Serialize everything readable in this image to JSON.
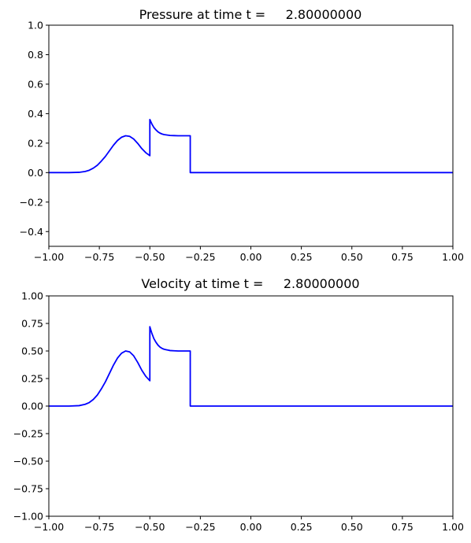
{
  "chart_data": [
    {
      "type": "line",
      "title": "Pressure at time t =     2.80000000",
      "xlabel": "",
      "ylabel": "",
      "xlim": [
        -1.0,
        1.0
      ],
      "ylim": [
        -0.5,
        1.0
      ],
      "xticks": [
        -1.0,
        -0.75,
        -0.5,
        -0.25,
        0.0,
        0.25,
        0.5,
        0.75,
        1.0
      ],
      "xtick_labels": [
        "−1.00",
        "−0.75",
        "−0.50",
        "−0.25",
        "0.00",
        "0.25",
        "0.50",
        "0.75",
        "1.00"
      ],
      "yticks": [
        -0.4,
        -0.2,
        0.0,
        0.2,
        0.4,
        0.6,
        0.8,
        1.0
      ],
      "ytick_labels": [
        "−0.4",
        "−0.2",
        "0.0",
        "0.2",
        "0.4",
        "0.6",
        "0.8",
        "1.0"
      ],
      "grid": false,
      "series": [
        {
          "color": "#0000ff",
          "x": [
            -1.0,
            -0.9,
            -0.85,
            -0.82,
            -0.8,
            -0.78,
            -0.76,
            -0.74,
            -0.72,
            -0.7,
            -0.68,
            -0.66,
            -0.64,
            -0.62,
            -0.6,
            -0.58,
            -0.56,
            -0.54,
            -0.52,
            -0.5,
            -0.5,
            -0.49,
            -0.48,
            -0.47,
            -0.46,
            -0.45,
            -0.44,
            -0.43,
            -0.42,
            -0.41,
            -0.4,
            -0.38,
            -0.36,
            -0.34,
            -0.32,
            -0.3,
            -0.3,
            -0.28,
            0.0,
            0.5,
            1.0
          ],
          "y": [
            0.0,
            0.0,
            0.002,
            0.008,
            0.016,
            0.03,
            0.05,
            0.078,
            0.11,
            0.148,
            0.186,
            0.218,
            0.24,
            0.25,
            0.246,
            0.228,
            0.198,
            0.163,
            0.135,
            0.115,
            0.36,
            0.33,
            0.306,
            0.29,
            0.277,
            0.268,
            0.262,
            0.258,
            0.256,
            0.254,
            0.252,
            0.251,
            0.25,
            0.25,
            0.25,
            0.25,
            0.0,
            0.0,
            0.0,
            0.0,
            0.0
          ]
        }
      ]
    },
    {
      "type": "line",
      "title": "Velocity at time t =     2.80000000",
      "xlabel": "",
      "ylabel": "",
      "xlim": [
        -1.0,
        1.0
      ],
      "ylim": [
        -1.0,
        1.0
      ],
      "xticks": [
        -1.0,
        -0.75,
        -0.5,
        -0.25,
        0.0,
        0.25,
        0.5,
        0.75,
        1.0
      ],
      "xtick_labels": [
        "−1.00",
        "−0.75",
        "−0.50",
        "−0.25",
        "0.00",
        "0.25",
        "0.50",
        "0.75",
        "1.00"
      ],
      "yticks": [
        -1.0,
        -0.75,
        -0.5,
        -0.25,
        0.0,
        0.25,
        0.5,
        0.75,
        1.0
      ],
      "ytick_labels": [
        "−1.00",
        "−0.75",
        "−0.50",
        "−0.25",
        "0.00",
        "0.25",
        "0.50",
        "0.75",
        "1.00"
      ],
      "grid": false,
      "series": [
        {
          "color": "#0000ff",
          "x": [
            -1.0,
            -0.9,
            -0.85,
            -0.82,
            -0.8,
            -0.78,
            -0.76,
            -0.74,
            -0.72,
            -0.7,
            -0.68,
            -0.66,
            -0.64,
            -0.62,
            -0.6,
            -0.58,
            -0.56,
            -0.54,
            -0.52,
            -0.5,
            -0.5,
            -0.49,
            -0.48,
            -0.47,
            -0.46,
            -0.45,
            -0.44,
            -0.43,
            -0.42,
            -0.41,
            -0.4,
            -0.38,
            -0.36,
            -0.34,
            -0.32,
            -0.3,
            -0.3,
            -0.28,
            0.0,
            0.5,
            1.0
          ],
          "y": [
            0.0,
            0.0,
            0.004,
            0.016,
            0.032,
            0.06,
            0.1,
            0.156,
            0.22,
            0.296,
            0.372,
            0.436,
            0.48,
            0.5,
            0.492,
            0.456,
            0.396,
            0.326,
            0.27,
            0.23,
            0.72,
            0.66,
            0.612,
            0.58,
            0.554,
            0.536,
            0.524,
            0.516,
            0.512,
            0.508,
            0.504,
            0.502,
            0.5,
            0.5,
            0.5,
            0.5,
            0.0,
            0.0,
            0.0,
            0.0,
            0.0
          ]
        }
      ]
    }
  ]
}
